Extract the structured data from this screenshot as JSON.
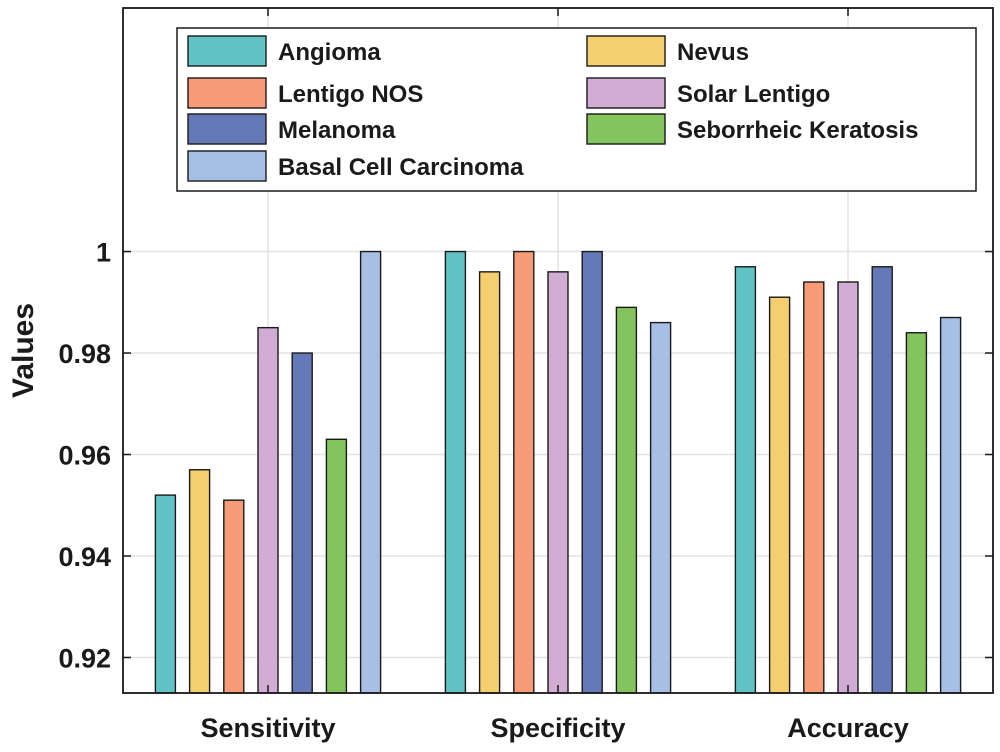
{
  "chart_data": {
    "type": "bar",
    "title": "",
    "xlabel": "",
    "ylabel": "Values",
    "ylim": [
      0.913,
      1.048
    ],
    "yticks": [
      0.92,
      0.94,
      0.96,
      0.98,
      1
    ],
    "ytick_labels": [
      "0.92",
      "0.94",
      "0.96",
      "0.98",
      "1"
    ],
    "grid": true,
    "legend_position": "top",
    "categories": [
      "Sensitivity",
      "Specificity",
      "Accuracy"
    ],
    "series": [
      {
        "name": "Angioma",
        "color": "#62C3C6",
        "values": [
          0.952,
          1.0,
          0.997
        ]
      },
      {
        "name": "Nevus",
        "color": "#F5CF6E",
        "values": [
          0.957,
          0.996,
          0.991
        ]
      },
      {
        "name": "Lentigo NOS",
        "color": "#F79C76",
        "values": [
          0.951,
          1.0,
          0.994
        ]
      },
      {
        "name": "Solar Lentigo",
        "color": "#D1ADD6",
        "values": [
          0.985,
          0.996,
          0.994
        ]
      },
      {
        "name": "Melanoma",
        "color": "#6578B8",
        "values": [
          0.98,
          1.0,
          0.997
        ]
      },
      {
        "name": "Seborrheic Keratosis",
        "color": "#84C45D",
        "values": [
          0.963,
          0.989,
          0.984
        ]
      },
      {
        "name": "Basal Cell Carcinoma",
        "color": "#A7BEE5",
        "values": [
          1.0,
          0.986,
          0.987
        ]
      }
    ]
  }
}
